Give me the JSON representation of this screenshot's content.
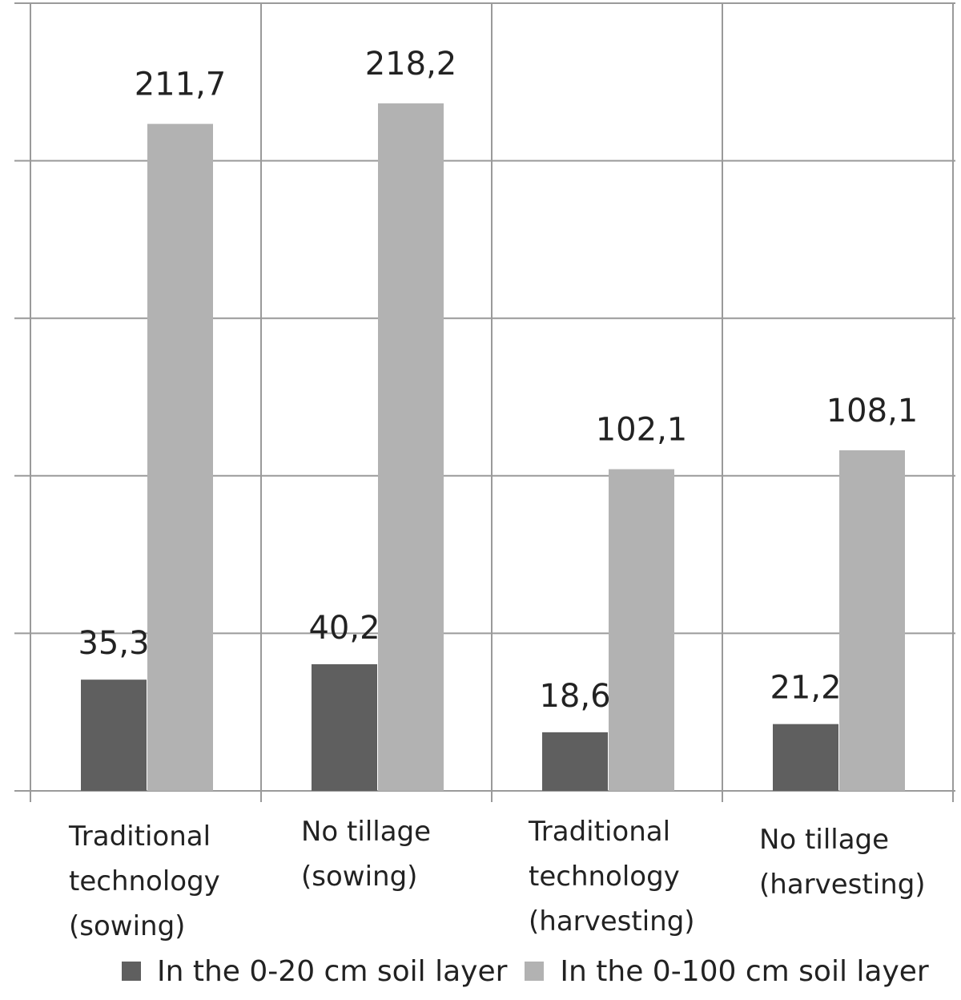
{
  "chart_data": {
    "type": "bar",
    "categories": [
      "Traditional\ntechnology\n(sowing)",
      "No tillage\n(sowing)",
      "Traditional\ntechnology\n(harvesting)",
      "No tillage\n(harvesting)"
    ],
    "series": [
      {
        "name": "In the 0-20 cm soil layer",
        "values": [
          35.3,
          40.2,
          18.6,
          21.2
        ],
        "labels": [
          "35,3",
          "40,2",
          "18,6",
          "21,2"
        ],
        "color": "#5f5f5f"
      },
      {
        "name": "In the 0-100 cm soil layer",
        "values": [
          211.7,
          218.2,
          102.1,
          108.1
        ],
        "labels": [
          "211,7",
          "218,2",
          "102,1",
          "108,1"
        ],
        "color": "#b2b2b2"
      }
    ],
    "ylim": [
      0,
      250
    ],
    "grid": true,
    "legend_position": "bottom",
    "colors": {
      "grid": "#9a9a9a",
      "text": "#222222"
    }
  }
}
